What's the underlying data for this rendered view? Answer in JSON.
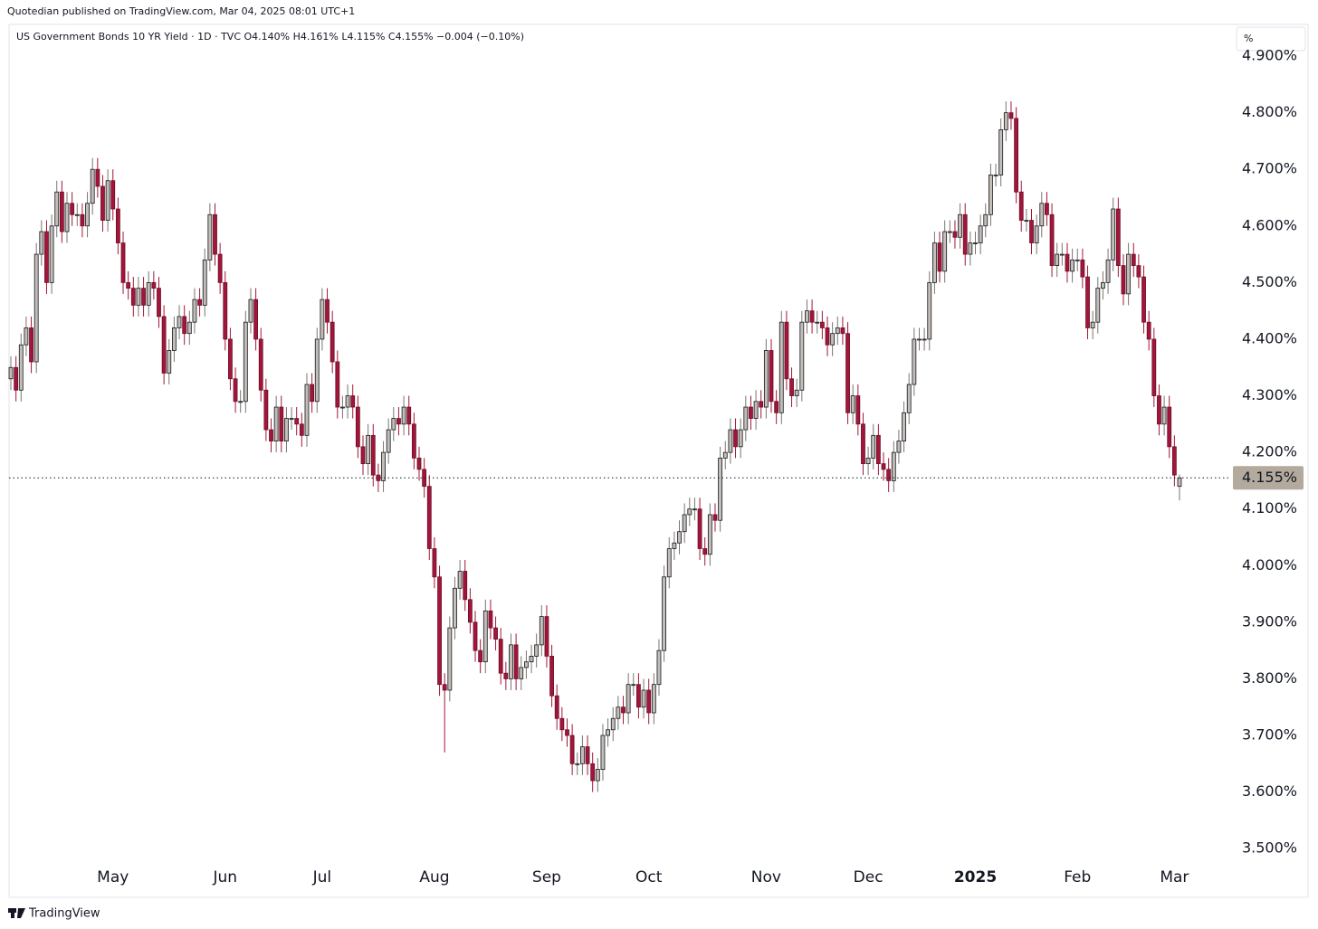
{
  "header": {
    "publisher": "Quotedian published on TradingView.com, Mar 04, 2025 08:01 UTC+1",
    "brand": "TradingView"
  },
  "chart_data": {
    "type": "candlestick",
    "title": "US Government Bonds 10 YR Yield · 1D · TVC",
    "legend_values": [
      "O4.140%",
      "H4.161%",
      "L4.115%",
      "C4.155%",
      "−0.004 (−0.10%)"
    ],
    "unit": "%",
    "last_price_label": "4.155%",
    "up_color": "#c4beb7",
    "down_color": "#a1163a",
    "ylim": [
      3.414,
      4.956
    ],
    "yticks": [
      {
        "value": 3.5,
        "label": "3.500%"
      },
      {
        "value": 3.6,
        "label": "3.600%"
      },
      {
        "value": 3.7,
        "label": "3.700%"
      },
      {
        "value": 3.8,
        "label": "3.800%"
      },
      {
        "value": 3.9,
        "label": "3.900%"
      },
      {
        "value": 4.0,
        "label": "4.000%"
      },
      {
        "value": 4.1,
        "label": "4.100%"
      },
      {
        "value": 4.2,
        "label": "4.200%"
      },
      {
        "value": 4.3,
        "label": "4.300%"
      },
      {
        "value": 4.4,
        "label": "4.400%"
      },
      {
        "value": 4.5,
        "label": "4.500%"
      },
      {
        "value": 4.6,
        "label": "4.600%"
      },
      {
        "value": 4.7,
        "label": "4.700%"
      },
      {
        "value": 4.8,
        "label": "4.800%"
      },
      {
        "value": 4.9,
        "label": "4.900%"
      }
    ],
    "categories": [
      null,
      null,
      null,
      null,
      null,
      null,
      null,
      null,
      null,
      null,
      null,
      null,
      null,
      null,
      null,
      null,
      null,
      null,
      null,
      null,
      "May",
      null,
      null,
      null,
      null,
      null,
      null,
      null,
      null,
      null,
      null,
      null,
      null,
      null,
      null,
      null,
      null,
      null,
      null,
      null,
      null,
      null,
      "Jun",
      null,
      null,
      null,
      null,
      null,
      null,
      null,
      null,
      null,
      null,
      null,
      null,
      null,
      null,
      null,
      null,
      null,
      null,
      "Jul",
      null,
      null,
      null,
      null,
      null,
      null,
      null,
      null,
      null,
      null,
      null,
      null,
      null,
      null,
      null,
      null,
      null,
      null,
      null,
      null,
      null,
      "Aug",
      null,
      null,
      null,
      null,
      null,
      null,
      null,
      null,
      null,
      null,
      null,
      null,
      null,
      null,
      null,
      null,
      null,
      null,
      null,
      null,
      null,
      "Sep",
      null,
      null,
      null,
      null,
      null,
      null,
      null,
      null,
      null,
      null,
      null,
      null,
      null,
      null,
      null,
      null,
      null,
      null,
      null,
      "Oct",
      null,
      null,
      null,
      null,
      null,
      null,
      null,
      null,
      null,
      null,
      null,
      null,
      null,
      null,
      null,
      null,
      null,
      null,
      null,
      null,
      null,
      null,
      "Nov",
      null,
      null,
      null,
      null,
      null,
      null,
      null,
      null,
      null,
      null,
      null,
      null,
      null,
      null,
      null,
      null,
      null,
      null,
      null,
      "Dec",
      null,
      null,
      null,
      null,
      null,
      null,
      null,
      null,
      null,
      null,
      null,
      null,
      null,
      null,
      null,
      null,
      null,
      null,
      null,
      null,
      "2025",
      null,
      null,
      null,
      null,
      null,
      null,
      null,
      null,
      null,
      null,
      null,
      null,
      null,
      null,
      null,
      null,
      null,
      null,
      null,
      "Feb",
      null,
      null,
      null,
      null,
      null,
      null,
      null,
      null,
      null,
      null,
      null,
      null,
      null,
      null,
      null,
      null,
      null,
      null,
      "Mar",
      null
    ],
    "open": [
      4.33,
      4.35,
      4.31,
      4.39,
      4.42,
      4.36,
      4.55,
      4.59,
      4.5,
      4.6,
      4.66,
      4.59,
      4.64,
      4.62,
      4.62,
      4.6,
      4.64,
      4.7,
      4.67,
      4.61,
      4.68,
      4.63,
      4.57,
      4.5,
      4.49,
      4.46,
      4.49,
      4.46,
      4.5,
      4.49,
      4.44,
      4.34,
      4.38,
      4.42,
      4.44,
      4.41,
      4.43,
      4.47,
      4.46,
      4.54,
      4.62,
      4.55,
      4.5,
      4.4,
      4.33,
      4.29,
      4.29,
      4.43,
      4.47,
      4.4,
      4.31,
      4.24,
      4.22,
      4.28,
      4.22,
      4.26,
      4.26,
      4.25,
      4.23,
      4.32,
      4.29,
      4.4,
      4.47,
      4.43,
      4.36,
      4.28,
      4.28,
      4.3,
      4.28,
      4.21,
      4.18,
      4.23,
      4.16,
      4.15,
      4.2,
      4.24,
      4.26,
      4.25,
      4.28,
      4.25,
      4.19,
      4.17,
      4.14,
      4.03,
      3.98,
      3.79,
      3.78,
      3.89,
      3.96,
      3.99,
      3.94,
      3.9,
      3.85,
      3.83,
      3.92,
      3.89,
      3.87,
      3.81,
      3.8,
      3.86,
      3.8,
      3.82,
      3.83,
      3.84,
      3.86,
      3.91,
      3.84,
      3.77,
      3.73,
      3.71,
      3.7,
      3.65,
      3.65,
      3.68,
      3.65,
      3.62,
      3.64,
      3.7,
      3.71,
      3.73,
      3.75,
      3.74,
      3.79,
      3.79,
      3.75,
      3.78,
      3.74,
      3.79,
      3.85,
      3.98,
      4.03,
      4.04,
      4.06,
      4.09,
      4.1,
      4.1,
      4.03,
      4.02,
      4.09,
      4.08,
      4.19,
      4.2,
      4.24,
      4.21,
      4.24,
      4.28,
      4.26,
      4.29,
      4.28,
      4.38,
      4.29,
      4.27,
      4.43,
      4.33,
      4.3,
      4.31,
      4.43,
      4.45,
      4.43,
      4.43,
      4.42,
      4.39,
      4.41,
      4.42,
      4.41,
      4.27,
      4.3,
      4.25,
      4.18,
      4.19,
      4.23,
      4.18,
      4.17,
      4.15,
      4.2,
      4.22,
      4.27,
      4.32,
      4.4,
      4.4,
      4.4,
      4.5,
      4.57,
      4.52,
      4.59,
      4.59,
      4.58,
      4.62,
      4.55,
      4.57,
      4.57,
      4.6,
      4.62,
      4.69,
      4.69,
      4.77,
      4.8,
      4.79,
      4.66,
      4.61,
      4.61,
      4.57,
      4.6,
      4.64,
      4.62,
      4.53,
      4.55,
      4.55,
      4.52,
      4.54,
      4.54,
      4.51,
      4.42,
      4.43,
      4.49,
      4.5,
      4.54,
      4.63,
      4.53,
      4.48,
      4.55,
      4.53,
      4.51,
      4.43,
      4.4,
      4.3,
      4.25,
      4.28,
      4.21,
      4.14
    ],
    "high": [
      4.37,
      4.37,
      4.41,
      4.44,
      4.44,
      4.57,
      4.61,
      4.61,
      4.62,
      4.68,
      4.68,
      4.66,
      4.66,
      4.64,
      4.64,
      4.66,
      4.72,
      4.72,
      4.69,
      4.7,
      4.7,
      4.65,
      4.59,
      4.52,
      4.51,
      4.51,
      4.51,
      4.52,
      4.52,
      4.51,
      4.46,
      4.4,
      4.44,
      4.46,
      4.46,
      4.45,
      4.49,
      4.49,
      4.56,
      4.64,
      4.64,
      4.57,
      4.52,
      4.42,
      4.35,
      4.31,
      4.45,
      4.49,
      4.49,
      4.42,
      4.33,
      4.26,
      4.3,
      4.3,
      4.28,
      4.28,
      4.28,
      4.27,
      4.34,
      4.34,
      4.42,
      4.49,
      4.49,
      4.45,
      4.38,
      4.3,
      4.32,
      4.32,
      4.3,
      4.23,
      4.25,
      4.25,
      4.18,
      4.22,
      4.26,
      4.28,
      4.28,
      4.3,
      4.3,
      4.27,
      4.21,
      4.19,
      4.16,
      4.05,
      4.0,
      3.81,
      3.91,
      3.98,
      4.01,
      4.01,
      3.96,
      3.92,
      3.87,
      3.94,
      3.94,
      3.91,
      3.89,
      3.83,
      3.88,
      3.88,
      3.84,
      3.85,
      3.86,
      3.88,
      3.93,
      3.93,
      3.86,
      3.79,
      3.75,
      3.73,
      3.72,
      3.67,
      3.7,
      3.7,
      3.67,
      3.66,
      3.72,
      3.73,
      3.75,
      3.77,
      3.77,
      3.81,
      3.81,
      3.81,
      3.8,
      3.8,
      3.81,
      3.87,
      4.0,
      4.05,
      4.06,
      4.08,
      4.11,
      4.12,
      4.12,
      4.12,
      4.05,
      4.11,
      4.11,
      4.21,
      4.22,
      4.26,
      4.26,
      4.26,
      4.3,
      4.3,
      4.31,
      4.31,
      4.4,
      4.4,
      4.31,
      4.45,
      4.45,
      4.35,
      4.33,
      4.45,
      4.47,
      4.47,
      4.45,
      4.45,
      4.44,
      4.43,
      4.44,
      4.44,
      4.43,
      4.32,
      4.32,
      4.27,
      4.21,
      4.25,
      4.25,
      4.2,
      4.19,
      4.22,
      4.24,
      4.29,
      4.34,
      4.42,
      4.42,
      4.42,
      4.52,
      4.59,
      4.59,
      4.61,
      4.61,
      4.61,
      4.64,
      4.64,
      4.59,
      4.59,
      4.62,
      4.64,
      4.71,
      4.71,
      4.79,
      4.82,
      4.82,
      4.81,
      4.68,
      4.63,
      4.63,
      4.62,
      4.66,
      4.66,
      4.64,
      4.57,
      4.57,
      4.57,
      4.56,
      4.56,
      4.56,
      4.53,
      4.45,
      4.51,
      4.52,
      4.56,
      4.65,
      4.65,
      4.55,
      4.57,
      4.57,
      4.55,
      4.53,
      4.45,
      4.42,
      4.32,
      4.3,
      4.3,
      4.23,
      4.161
    ],
    "low": [
      4.31,
      4.29,
      4.29,
      4.37,
      4.34,
      4.34,
      4.53,
      4.48,
      4.48,
      4.58,
      4.57,
      4.57,
      4.6,
      4.6,
      4.58,
      4.58,
      4.62,
      4.65,
      4.59,
      4.59,
      4.61,
      4.55,
      4.48,
      4.47,
      4.44,
      4.44,
      4.44,
      4.44,
      4.47,
      4.42,
      4.32,
      4.32,
      4.36,
      4.4,
      4.39,
      4.39,
      4.41,
      4.44,
      4.44,
      4.52,
      4.53,
      4.48,
      4.38,
      4.31,
      4.27,
      4.27,
      4.27,
      4.41,
      4.38,
      4.29,
      4.22,
      4.2,
      4.2,
      4.2,
      4.2,
      4.24,
      4.23,
      4.21,
      4.21,
      4.27,
      4.27,
      4.38,
      4.41,
      4.34,
      4.26,
      4.26,
      4.26,
      4.26,
      4.19,
      4.16,
      4.16,
      4.14,
      4.13,
      4.13,
      4.18,
      4.22,
      4.23,
      4.23,
      4.23,
      4.17,
      4.15,
      4.12,
      4.01,
      3.96,
      3.77,
      3.67,
      3.76,
      3.87,
      3.94,
      3.92,
      3.88,
      3.83,
      3.81,
      3.81,
      3.87,
      3.85,
      3.79,
      3.78,
      3.78,
      3.78,
      3.78,
      3.8,
      3.81,
      3.82,
      3.84,
      3.82,
      3.75,
      3.71,
      3.69,
      3.68,
      3.63,
      3.63,
      3.63,
      3.63,
      3.6,
      3.6,
      3.62,
      3.68,
      3.69,
      3.71,
      3.72,
      3.72,
      3.77,
      3.73,
      3.73,
      3.72,
      3.72,
      3.77,
      3.83,
      3.96,
      4.01,
      4.02,
      4.04,
      4.07,
      4.08,
      4.01,
      4.0,
      4.0,
      4.06,
      4.06,
      4.17,
      4.18,
      4.19,
      4.19,
      4.22,
      4.24,
      4.24,
      4.26,
      4.26,
      4.27,
      4.25,
      4.25,
      4.31,
      4.28,
      4.28,
      4.29,
      4.41,
      4.41,
      4.41,
      4.4,
      4.37,
      4.37,
      4.39,
      4.39,
      4.25,
      4.25,
      4.23,
      4.16,
      4.16,
      4.17,
      4.16,
      4.15,
      4.13,
      4.13,
      4.18,
      4.2,
      4.25,
      4.3,
      4.38,
      4.38,
      4.38,
      4.48,
      4.5,
      4.5,
      4.57,
      4.56,
      4.56,
      4.53,
      4.53,
      4.55,
      4.55,
      4.58,
      4.6,
      4.67,
      4.67,
      4.75,
      4.77,
      4.64,
      4.59,
      4.59,
      4.55,
      4.55,
      4.58,
      4.6,
      4.51,
      4.51,
      4.53,
      4.5,
      4.5,
      4.52,
      4.49,
      4.4,
      4.4,
      4.41,
      4.47,
      4.48,
      4.52,
      4.51,
      4.46,
      4.46,
      4.51,
      4.49,
      4.41,
      4.38,
      4.28,
      4.23,
      4.23,
      4.19,
      4.14,
      4.115
    ],
    "close": [
      4.35,
      4.31,
      4.39,
      4.42,
      4.36,
      4.55,
      4.59,
      4.5,
      4.6,
      4.66,
      4.59,
      4.64,
      4.62,
      4.62,
      4.6,
      4.64,
      4.7,
      4.67,
      4.61,
      4.68,
      4.63,
      4.57,
      4.5,
      4.49,
      4.46,
      4.49,
      4.46,
      4.5,
      4.49,
      4.44,
      4.34,
      4.38,
      4.42,
      4.44,
      4.41,
      4.43,
      4.47,
      4.46,
      4.54,
      4.62,
      4.55,
      4.5,
      4.4,
      4.33,
      4.29,
      4.29,
      4.43,
      4.47,
      4.4,
      4.31,
      4.24,
      4.22,
      4.28,
      4.22,
      4.26,
      4.26,
      4.25,
      4.23,
      4.32,
      4.29,
      4.4,
      4.47,
      4.43,
      4.36,
      4.28,
      4.28,
      4.3,
      4.28,
      4.21,
      4.18,
      4.23,
      4.16,
      4.15,
      4.2,
      4.24,
      4.26,
      4.25,
      4.28,
      4.25,
      4.19,
      4.17,
      4.14,
      4.03,
      3.98,
      3.79,
      3.78,
      3.89,
      3.96,
      3.99,
      3.94,
      3.9,
      3.85,
      3.83,
      3.92,
      3.89,
      3.87,
      3.81,
      3.8,
      3.86,
      3.8,
      3.82,
      3.83,
      3.84,
      3.86,
      3.91,
      3.84,
      3.77,
      3.73,
      3.71,
      3.7,
      3.65,
      3.65,
      3.68,
      3.65,
      3.62,
      3.64,
      3.7,
      3.71,
      3.73,
      3.75,
      3.74,
      3.79,
      3.79,
      3.75,
      3.78,
      3.74,
      3.79,
      3.85,
      3.98,
      4.03,
      4.04,
      4.06,
      4.09,
      4.1,
      4.1,
      4.03,
      4.02,
      4.09,
      4.08,
      4.19,
      4.2,
      4.24,
      4.21,
      4.24,
      4.28,
      4.26,
      4.29,
      4.28,
      4.38,
      4.29,
      4.27,
      4.43,
      4.33,
      4.3,
      4.31,
      4.43,
      4.45,
      4.43,
      4.43,
      4.42,
      4.39,
      4.41,
      4.42,
      4.41,
      4.27,
      4.3,
      4.25,
      4.18,
      4.19,
      4.23,
      4.18,
      4.17,
      4.15,
      4.2,
      4.22,
      4.27,
      4.32,
      4.4,
      4.4,
      4.4,
      4.5,
      4.57,
      4.52,
      4.59,
      4.59,
      4.58,
      4.62,
      4.55,
      4.57,
      4.57,
      4.6,
      4.62,
      4.69,
      4.69,
      4.77,
      4.8,
      4.79,
      4.66,
      4.61,
      4.61,
      4.57,
      4.6,
      4.64,
      4.62,
      4.53,
      4.55,
      4.55,
      4.52,
      4.54,
      4.54,
      4.51,
      4.42,
      4.43,
      4.49,
      4.5,
      4.54,
      4.63,
      4.53,
      4.48,
      4.55,
      4.53,
      4.51,
      4.43,
      4.4,
      4.3,
      4.25,
      4.28,
      4.21,
      4.16,
      4.155
    ]
  }
}
